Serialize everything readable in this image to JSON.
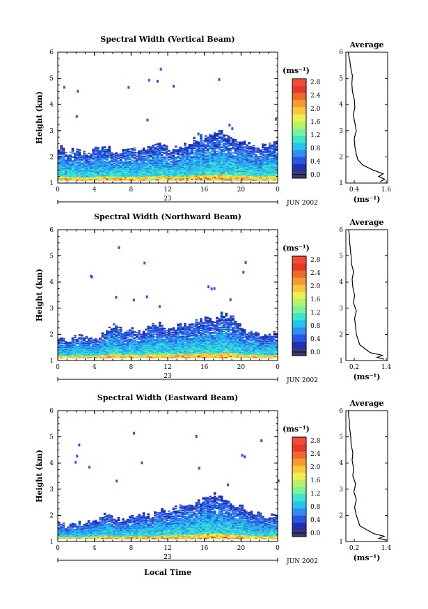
{
  "figure": {
    "x_axis_label": "Local Time",
    "date_label": "JUN 2002",
    "day_label": "23",
    "units_label": "(ms⁻¹)",
    "average_title": "Average"
  },
  "colorscale": {
    "labels": [
      "0.0",
      "0.4",
      "0.8",
      "1.2",
      "1.6",
      "2.0",
      "2.4",
      "2.8"
    ],
    "colors": [
      "#3b3b6e",
      "#2030b0",
      "#2c55e6",
      "#2f8ef0",
      "#26c4ec",
      "#3ce6cc",
      "#7df09a",
      "#b9f06a",
      "#ecee52",
      "#f6c83c",
      "#f69a32",
      "#ee6a2c",
      "#e23a26",
      "#f04c3a"
    ]
  },
  "chart_data": [
    {
      "type": "heatmap",
      "title": "Spectral Width (Vertical Beam)",
      "xlabel": "",
      "ylabel": "Height (km)",
      "xlim": [
        0,
        24
      ],
      "ylim": [
        1,
        6
      ],
      "xticks": [
        "0",
        "4",
        "8",
        "12",
        "16",
        "20",
        "0"
      ],
      "yticks": [
        "1",
        "2",
        "3",
        "4",
        "5",
        "6"
      ],
      "colorbar_range": [
        0.0,
        2.8
      ],
      "base_height_km": 1.1,
      "top_height_km": [
        2.4,
        2.2,
        2.3,
        2.1,
        2.3,
        2.4,
        2.2,
        2.2,
        2.3,
        2.2,
        2.4,
        2.5,
        2.3,
        2.4,
        2.5,
        2.7,
        2.8,
        2.9,
        2.9,
        2.7,
        2.6,
        2.5,
        2.4,
        2.5
      ]
    },
    {
      "type": "line",
      "title": "Average",
      "xlabel": "(ms⁻¹)",
      "ylabel": "",
      "xlim": [
        0.2,
        1.6
      ],
      "ylim": [
        1,
        6
      ],
      "xticks": [
        "0.4",
        "1.6"
      ],
      "yticks": [
        "1",
        "2",
        "3",
        "4",
        "5",
        "6"
      ],
      "x": [
        1.35,
        1.5,
        1.3,
        1.45,
        1.1,
        0.75,
        0.6,
        0.55,
        0.5,
        0.48,
        0.55,
        0.5,
        0.45,
        0.5,
        0.48,
        0.42,
        0.4,
        0.42,
        0.38,
        0.35,
        0.33,
        0.3,
        0.28
      ],
      "y": [
        1.05,
        1.15,
        1.25,
        1.35,
        1.5,
        1.7,
        1.9,
        2.1,
        2.4,
        2.7,
        3.0,
        3.3,
        3.6,
        3.9,
        4.2,
        4.5,
        4.8,
        5.1,
        5.3,
        5.5,
        5.7,
        5.85,
        6.0
      ]
    },
    {
      "type": "heatmap",
      "title": "Spectral Width (Northward Beam)",
      "xlabel": "",
      "ylabel": "Height (km)",
      "xlim": [
        0,
        24
      ],
      "ylim": [
        1,
        6
      ],
      "xticks": [
        "0",
        "4",
        "8",
        "12",
        "16",
        "20",
        "0"
      ],
      "yticks": [
        "1",
        "2",
        "3",
        "4",
        "5",
        "6"
      ],
      "colorbar_range": [
        0.0,
        2.8
      ],
      "base_height_km": 1.1,
      "top_height_km": [
        1.9,
        1.8,
        1.9,
        2.0,
        1.8,
        2.1,
        2.4,
        2.1,
        2.2,
        2.1,
        2.3,
        2.4,
        2.2,
        2.3,
        2.4,
        2.5,
        2.6,
        2.6,
        2.8,
        2.7,
        2.3,
        2.1,
        2.0,
        2.0
      ]
    },
    {
      "type": "line",
      "title": "Average",
      "xlabel": "(ms⁻¹)",
      "ylabel": "",
      "xlim": [
        0.2,
        1.4
      ],
      "ylim": [
        1,
        6
      ],
      "xticks": [
        "0.2",
        "1.4"
      ],
      "yticks": [
        "1",
        "2",
        "3",
        "4",
        "5",
        "6"
      ],
      "x": [
        1.3,
        1.1,
        1.25,
        0.9,
        0.75,
        0.6,
        0.55,
        0.5,
        0.48,
        0.45,
        0.5,
        0.42,
        0.45,
        0.4,
        0.38,
        0.42,
        0.36,
        0.35,
        0.33,
        0.32,
        0.3,
        0.3,
        0.28
      ],
      "y": [
        1.05,
        1.12,
        1.2,
        1.3,
        1.45,
        1.6,
        1.8,
        2.0,
        2.3,
        2.6,
        2.9,
        3.2,
        3.5,
        3.8,
        4.1,
        4.4,
        4.7,
        5.0,
        5.2,
        5.4,
        5.6,
        5.8,
        6.0
      ]
    },
    {
      "type": "heatmap",
      "title": "Spectral Width (Eastward Beam)",
      "xlabel": "Local Time",
      "ylabel": "Height (km)",
      "xlim": [
        0,
        24
      ],
      "ylim": [
        1,
        6
      ],
      "xticks": [
        "0",
        "4",
        "8",
        "12",
        "16",
        "20",
        "0"
      ],
      "yticks": [
        "1",
        "2",
        "3",
        "4",
        "5",
        "6"
      ],
      "colorbar_range": [
        0.0,
        2.8
      ],
      "base_height_km": 1.1,
      "top_height_km": [
        1.7,
        1.6,
        1.7,
        1.7,
        1.8,
        2.0,
        1.9,
        1.8,
        2.0,
        2.1,
        2.0,
        2.2,
        2.1,
        2.3,
        2.4,
        2.5,
        2.7,
        2.8,
        2.6,
        2.4,
        2.3,
        2.1,
        2.0,
        2.0
      ]
    },
    {
      "type": "line",
      "title": "Average",
      "xlabel": "(ms⁻¹)",
      "ylabel": "",
      "xlim": [
        0.2,
        1.4
      ],
      "ylim": [
        1,
        6
      ],
      "xticks": [
        "0.2",
        "1.4"
      ],
      "yticks": [
        "1",
        "2",
        "3",
        "4",
        "5",
        "6"
      ],
      "x": [
        1.35,
        1.15,
        1.3,
        1.0,
        0.8,
        0.6,
        0.55,
        0.5,
        0.45,
        0.5,
        0.43,
        0.48,
        0.4,
        0.42,
        0.38,
        0.4,
        0.35,
        0.34,
        0.32,
        0.3,
        0.3,
        0.28,
        0.27
      ],
      "y": [
        1.05,
        1.12,
        1.2,
        1.3,
        1.45,
        1.6,
        1.8,
        2.0,
        2.3,
        2.6,
        2.9,
        3.2,
        3.5,
        3.8,
        4.1,
        4.4,
        4.7,
        5.0,
        5.2,
        5.4,
        5.6,
        5.8,
        6.0
      ]
    }
  ]
}
